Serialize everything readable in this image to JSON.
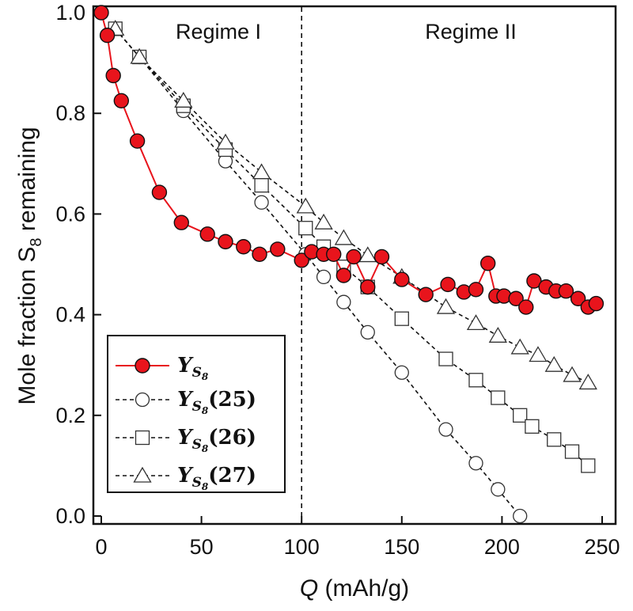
{
  "chart_data": {
    "type": "scatter",
    "xlabel": "Q (mAh/g)",
    "ylabel": "Mole fraction S8 remaining",
    "xlim": [
      0,
      250
    ],
    "ylim": [
      0.0,
      1.0
    ],
    "x_ticks": [
      0,
      50,
      100,
      150,
      200,
      250
    ],
    "y_ticks": [
      "0.0",
      "0.2",
      "0.4",
      "0.6",
      "0.8",
      "1.0"
    ],
    "divider_x": 100,
    "annotations": [
      "Regime I",
      "Regime II"
    ],
    "legend_placement": "bottom-left",
    "series": [
      {
        "name": "Y_S8",
        "marker": "filled-circle",
        "line": "solid",
        "color": "#e8141c",
        "points": [
          [
            0,
            1.0
          ],
          [
            3,
            0.955
          ],
          [
            6,
            0.875
          ],
          [
            10,
            0.825
          ],
          [
            18,
            0.745
          ],
          [
            29,
            0.643
          ],
          [
            40,
            0.583
          ],
          [
            53,
            0.56
          ],
          [
            62,
            0.545
          ],
          [
            71,
            0.535
          ],
          [
            79,
            0.52
          ],
          [
            88,
            0.53
          ],
          [
            100,
            0.508
          ],
          [
            105,
            0.525
          ],
          [
            111,
            0.52
          ],
          [
            116,
            0.52
          ],
          [
            121,
            0.478
          ],
          [
            126,
            0.515
          ],
          [
            133,
            0.455
          ],
          [
            140,
            0.515
          ],
          [
            150,
            0.47
          ],
          [
            162,
            0.44
          ],
          [
            173,
            0.46
          ],
          [
            181,
            0.445
          ],
          [
            187,
            0.45
          ],
          [
            193,
            0.502
          ],
          [
            197,
            0.437
          ],
          [
            201,
            0.437
          ],
          [
            207,
            0.432
          ],
          [
            212,
            0.415
          ],
          [
            216,
            0.467
          ],
          [
            222,
            0.455
          ],
          [
            227,
            0.447
          ],
          [
            232,
            0.447
          ],
          [
            238,
            0.432
          ],
          [
            243,
            0.415
          ],
          [
            247,
            0.422
          ]
        ]
      },
      {
        "name": "Y_S8(25)",
        "marker": "open-circle",
        "line": "dashed",
        "color": "#111111",
        "points": [
          [
            7,
            0.968
          ],
          [
            19,
            0.912
          ],
          [
            41,
            0.805
          ],
          [
            62,
            0.705
          ],
          [
            80,
            0.623
          ],
          [
            102,
            0.52
          ],
          [
            111,
            0.475
          ],
          [
            121,
            0.425
          ],
          [
            133,
            0.365
          ],
          [
            150,
            0.285
          ],
          [
            172,
            0.172
          ],
          [
            187,
            0.105
          ],
          [
            198,
            0.053
          ],
          [
            209,
            0.0
          ]
        ]
      },
      {
        "name": "Y_S8(26)",
        "marker": "open-square",
        "line": "dashed",
        "color": "#111111",
        "points": [
          [
            7,
            0.968
          ],
          [
            19,
            0.912
          ],
          [
            41,
            0.815
          ],
          [
            62,
            0.728
          ],
          [
            80,
            0.657
          ],
          [
            102,
            0.572
          ],
          [
            111,
            0.535
          ],
          [
            121,
            0.495
          ],
          [
            133,
            0.455
          ],
          [
            150,
            0.392
          ],
          [
            172,
            0.312
          ],
          [
            187,
            0.27
          ],
          [
            198,
            0.235
          ],
          [
            209,
            0.2
          ],
          [
            215,
            0.178
          ],
          [
            226,
            0.152
          ],
          [
            235,
            0.128
          ],
          [
            243,
            0.1
          ]
        ]
      },
      {
        "name": "Y_S8(27)",
        "marker": "open-triangle",
        "line": "dashed",
        "color": "#111111",
        "points": [
          [
            7,
            0.968
          ],
          [
            19,
            0.912
          ],
          [
            41,
            0.825
          ],
          [
            62,
            0.742
          ],
          [
            80,
            0.683
          ],
          [
            102,
            0.615
          ],
          [
            111,
            0.583
          ],
          [
            121,
            0.552
          ],
          [
            133,
            0.518
          ],
          [
            150,
            0.475
          ],
          [
            172,
            0.415
          ],
          [
            187,
            0.383
          ],
          [
            198,
            0.358
          ],
          [
            209,
            0.335
          ],
          [
            218,
            0.32
          ],
          [
            226,
            0.3
          ],
          [
            235,
            0.28
          ],
          [
            243,
            0.265
          ]
        ]
      }
    ]
  },
  "legend": {
    "items": [
      {
        "main": "Y",
        "sub": "S",
        "sub2": "8",
        "num": ""
      },
      {
        "main": "Y",
        "sub": "S",
        "sub2": "8",
        "num": "(25)"
      },
      {
        "main": "Y",
        "sub": "S",
        "sub2": "8",
        "num": "(26)"
      },
      {
        "main": "Y",
        "sub": "S",
        "sub2": "8",
        "num": "(27)"
      }
    ]
  },
  "labels": {
    "regime1": "Regime I",
    "regime2": "Regime II",
    "xlabel_italic": "Q",
    "xlabel_rest": " (mAh/g)",
    "ylabel_pre": "Mole fraction S",
    "ylabel_sub": "8",
    "ylabel_post": " remaining"
  }
}
